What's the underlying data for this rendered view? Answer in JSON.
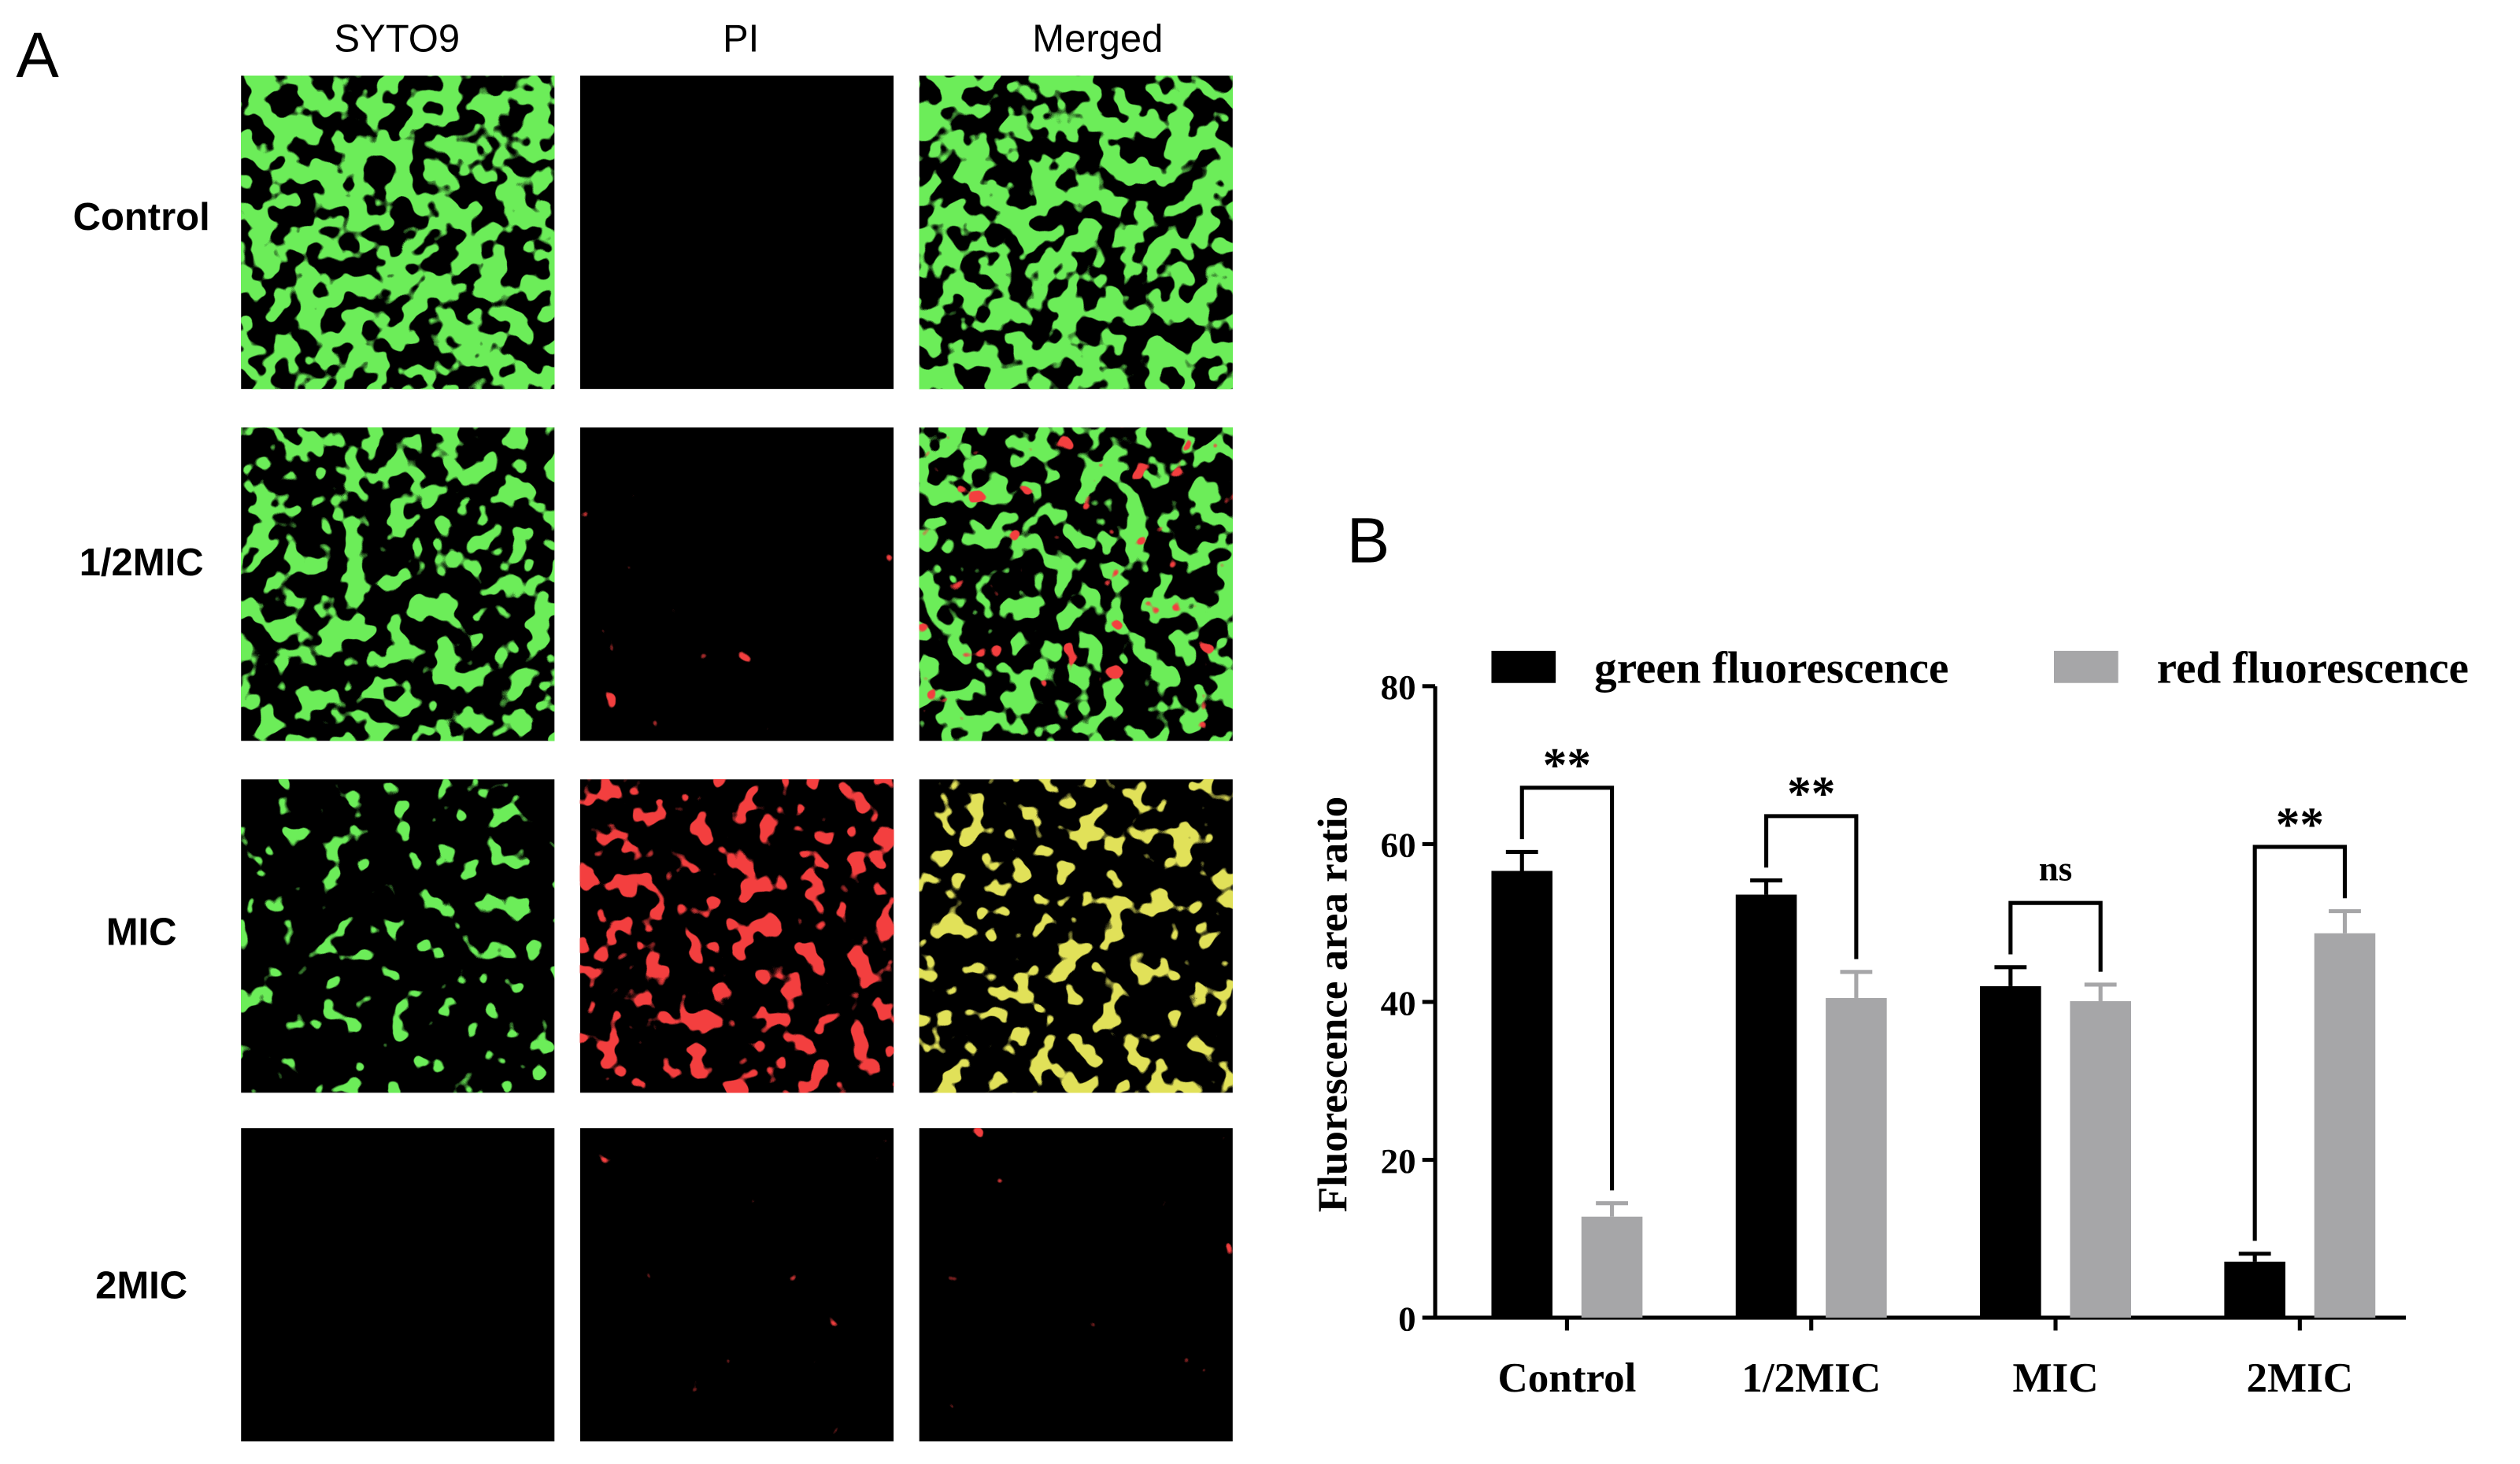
{
  "panel_a": {
    "label": "A",
    "columns": [
      "SYTO9",
      "PI",
      "Merged"
    ],
    "rows": [
      "Control",
      "1/2MIC",
      "MIC",
      "2MIC"
    ]
  },
  "chart_data": {
    "type": "bar",
    "panel_label": "B",
    "y_label": "Fluorescence area ratio",
    "categories": [
      "Control",
      "1/2MIC",
      "MIC",
      "2MIC"
    ],
    "series": [
      {
        "name": "green fluorescence",
        "color": "#000000",
        "values": [
          56.6,
          53.6,
          42,
          7.1
        ],
        "errors": [
          2.4,
          1.8,
          2.4,
          1
        ]
      },
      {
        "name": "red fluorescence",
        "color": "#a6a6a8",
        "values": [
          12.8,
          40.5,
          40.1,
          48.7
        ],
        "errors": [
          1.7,
          3.3,
          2.1,
          2.8
        ]
      }
    ],
    "annotations": [
      "**",
      "**",
      "ns",
      "**"
    ],
    "ylim": [
      0,
      80
    ],
    "yticks": [
      0,
      20,
      40,
      60,
      80
    ],
    "grid": false
  }
}
